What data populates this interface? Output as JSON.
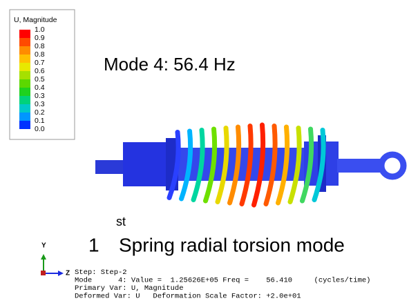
{
  "legend": {
    "title": "U, Magnitude",
    "labels": [
      "1.0",
      "0.9",
      "0.8",
      "0.8",
      "0.7",
      "0.6",
      "0.5",
      "0.4",
      "0.3",
      "0.3",
      "0.2",
      "0.1",
      "0.0"
    ],
    "colors": [
      "#ff0000",
      "#ff4a00",
      "#ff8c00",
      "#ffc000",
      "#e8e800",
      "#a6e000",
      "#5cd800",
      "#1ed21e",
      "#00d27a",
      "#00c8c8",
      "#0096ff",
      "#0032ff"
    ]
  },
  "mode_label": "Mode 4: 56.4 Hz",
  "caption": {
    "number": "1",
    "suffix": "st",
    "text": "Spring radial torsion mode"
  },
  "triad": {
    "y": "Y",
    "z": "Z"
  },
  "info": [
    "Step: Step-2",
    "Mode      4: Value =  1.25626E+05 Freq =    56.410     (cycles/time)",
    "Primary Var: U, Magnitude",
    "Deformed Var: U   Deformation Scale Factor: +2.0e+01"
  ]
}
